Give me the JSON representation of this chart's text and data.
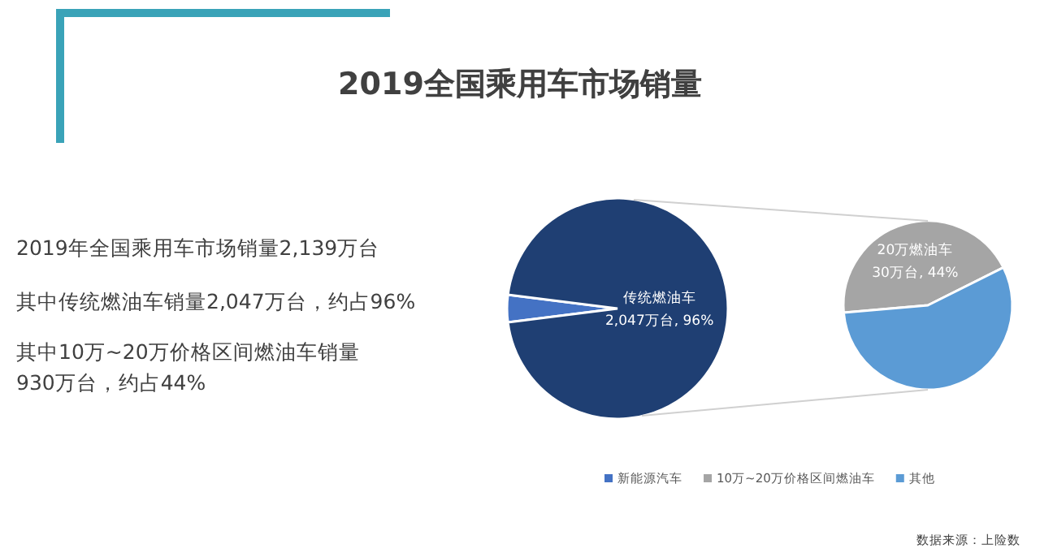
{
  "chart_data": [
    {
      "type": "other",
      "title": "2019全国乘用车市场销量",
      "annotations": [
        "2019年全国乘用车市场销量2,139万台",
        "其中传统燃油车销量2,047万台，约占96%",
        "其中10万~20万价格区间燃油车销量\n930万台，约占44%"
      ]
    },
    {
      "type": "pie",
      "categories": [
        "新能源汽车",
        null
      ],
      "values": [
        4,
        96
      ],
      "colors": [
        "#4472c4",
        "#1f3f73"
      ],
      "value_labels": [
        null,
        "传统燃油车\n2,047万台, 96%"
      ],
      "legend": "bottom"
    },
    {
      "type": "pie",
      "categories": [
        "10万~20万价格区间燃油车",
        "其他"
      ],
      "values": [
        44,
        56
      ],
      "colors": [
        "#a5a5a5",
        "#5b9bd5"
      ],
      "value_labels": [
        "20万燃油车\n30万台, 44%",
        null
      ],
      "legend": "bottom",
      "annotations": [
        "数据来源：上险数"
      ]
    }
  ]
}
